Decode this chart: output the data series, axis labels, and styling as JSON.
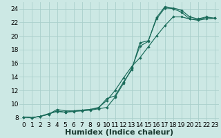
{
  "bg_color": "#cce8e4",
  "grid_color": "#aacfcb",
  "line_color": "#1a6b5a",
  "xlabel": "Humidex (Indice chaleur)",
  "xlabel_fontsize": 8,
  "tick_fontsize": 6.5,
  "xmin": -0.5,
  "xmax": 23.5,
  "ymin": 7.5,
  "ymax": 25.0,
  "yticks": [
    8,
    10,
    12,
    14,
    16,
    18,
    20,
    22,
    24
  ],
  "xticks": [
    0,
    1,
    2,
    3,
    4,
    5,
    6,
    7,
    8,
    9,
    10,
    11,
    12,
    13,
    14,
    15,
    16,
    17,
    18,
    19,
    20,
    21,
    22,
    23
  ],
  "line1_x": [
    0,
    1,
    2,
    3,
    4,
    5,
    6,
    7,
    8,
    9,
    10,
    11,
    12,
    13,
    14,
    15,
    16,
    17,
    18,
    19,
    20,
    21,
    22,
    23
  ],
  "line1_y": [
    8.1,
    8.0,
    8.2,
    8.5,
    9.0,
    8.8,
    8.9,
    9.0,
    9.1,
    9.3,
    9.5,
    11.0,
    13.0,
    15.2,
    18.5,
    19.2,
    22.7,
    24.3,
    24.1,
    23.8,
    22.8,
    22.5,
    22.8,
    22.6
  ],
  "line2_x": [
    0,
    1,
    2,
    3,
    4,
    5,
    6,
    7,
    8,
    9,
    10,
    11,
    12,
    13,
    14,
    15,
    16,
    17,
    18,
    19,
    20,
    21,
    22,
    23
  ],
  "line2_y": [
    8.1,
    8.0,
    8.2,
    8.5,
    9.2,
    9.0,
    9.0,
    9.1,
    9.2,
    9.4,
    10.8,
    11.2,
    13.2,
    15.0,
    19.0,
    19.3,
    22.5,
    24.1,
    24.0,
    23.5,
    22.5,
    22.4,
    22.7,
    22.6
  ],
  "line3_x": [
    0,
    1,
    2,
    3,
    4,
    5,
    6,
    7,
    8,
    9,
    10,
    11,
    12,
    13,
    14,
    15,
    16,
    17,
    18,
    19,
    20,
    21,
    22,
    23
  ],
  "line3_y": [
    8.1,
    8.0,
    8.2,
    8.6,
    8.9,
    8.8,
    9.0,
    9.1,
    9.2,
    9.5,
    10.5,
    12.0,
    13.8,
    15.5,
    16.8,
    18.4,
    20.0,
    21.5,
    22.8,
    22.8,
    22.5,
    22.3,
    22.5,
    22.6
  ]
}
